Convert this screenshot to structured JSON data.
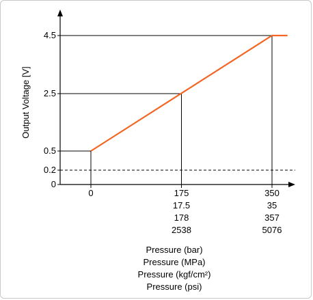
{
  "chart_data": {
    "type": "line",
    "title": "",
    "ylabel": "Output Voltage [V]",
    "xlabel_lines": [
      "Pressure (bar)",
      "Pressure (MPa)",
      "Pressure (kgf/cm²)",
      "Pressure (psi)"
    ],
    "x_ticks": [
      {
        "value": 0,
        "labels": [
          "0"
        ]
      },
      {
        "value": 175,
        "labels": [
          "175",
          "17.5",
          "178",
          "2538"
        ]
      },
      {
        "value": 350,
        "labels": [
          "350",
          "35",
          "357",
          "5076"
        ]
      }
    ],
    "y_ticks": [
      {
        "value": 0,
        "label": "0"
      },
      {
        "value": 0.2,
        "label": "0.2"
      },
      {
        "value": 0.5,
        "label": "0.5"
      },
      {
        "value": 2.5,
        "label": "2.5"
      },
      {
        "value": 4.5,
        "label": "4.5"
      }
    ],
    "series": [
      {
        "color": "#f26522",
        "points": [
          [
            0,
            0.5
          ],
          [
            350,
            4.5
          ],
          [
            380,
            4.5
          ]
        ]
      }
    ],
    "reference_lines": {
      "dashed_y": 0.2,
      "solid_y": [
        0.5,
        2.5,
        4.5
      ],
      "drop_lines": [
        [
          0,
          0.5
        ],
        [
          175,
          2.5
        ],
        [
          350,
          4.5
        ]
      ]
    },
    "colors": {
      "line": "#f26522",
      "axis": "#000000"
    }
  }
}
